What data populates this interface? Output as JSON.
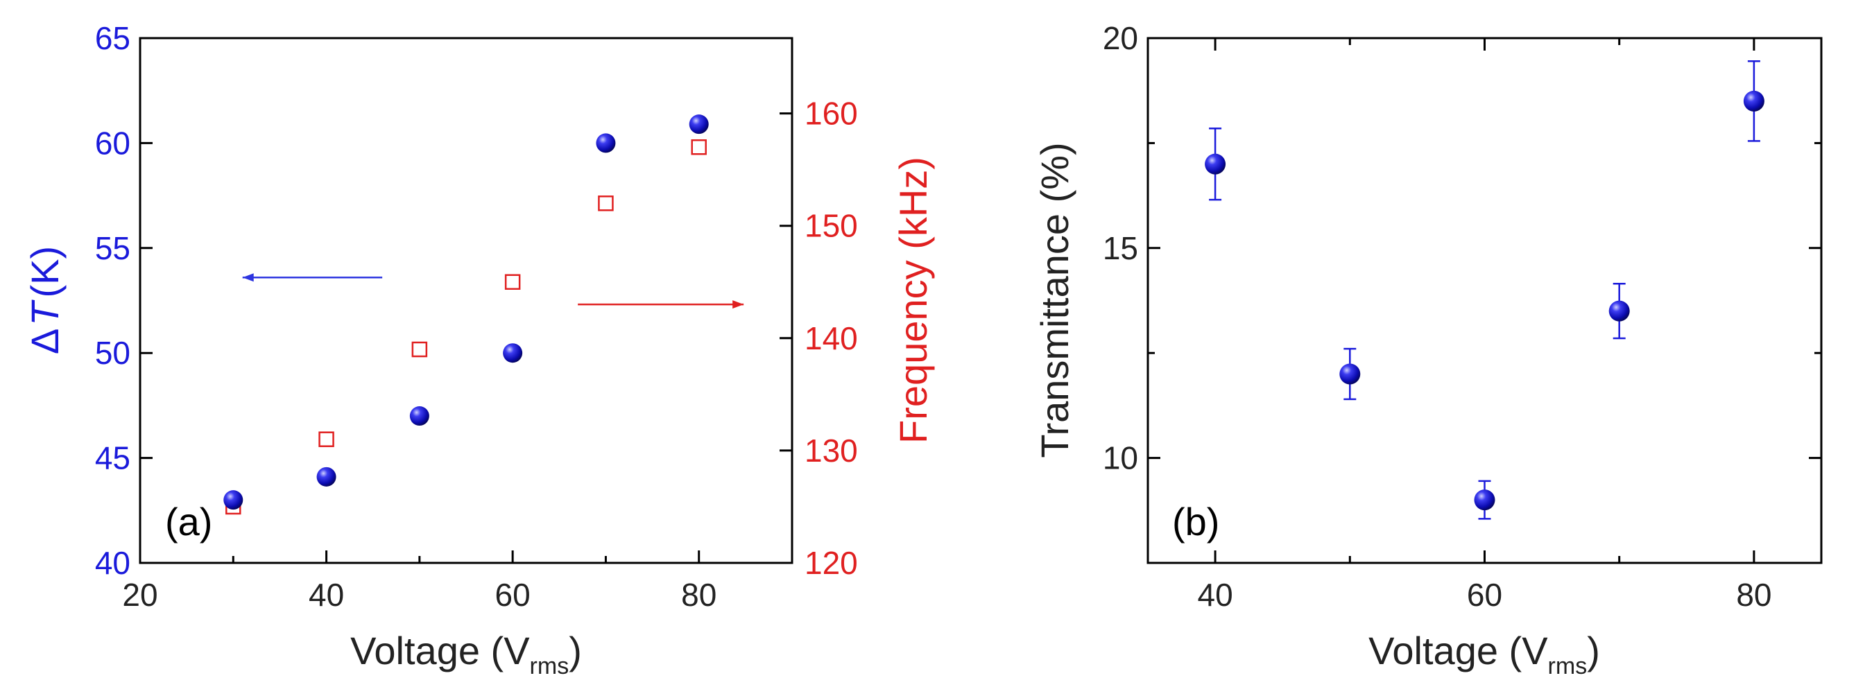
{
  "chart_data": [
    {
      "type": "scatter",
      "panel_label": "(a)",
      "xlabel": "Voltage (V",
      "xlabel_sub": "rms",
      "xlabel_close": ")",
      "ylabel_left_prefix": "Δ",
      "ylabel_left_var": "T",
      "ylabel_left_unit": "(K)",
      "ylabel_right": "Frequency (kHz)",
      "xlim": [
        20,
        90
      ],
      "ylim_left": [
        40,
        65
      ],
      "ylim_right": [
        120,
        166.7
      ],
      "xticks": [
        20,
        40,
        60,
        80
      ],
      "yticks_left": [
        40,
        45,
        50,
        55,
        60,
        65
      ],
      "yticks_right": [
        120,
        130,
        140,
        150,
        160
      ],
      "series": [
        {
          "name": "ΔT",
          "axis": "left",
          "marker": "filled-sphere",
          "color": "#1a1adb",
          "x": [
            30,
            40,
            50,
            60,
            70,
            80
          ],
          "y": [
            43,
            44.1,
            47,
            50,
            60,
            60.9
          ]
        },
        {
          "name": "Frequency",
          "axis": "right",
          "marker": "open-square",
          "color": "#e02020",
          "x": [
            30,
            40,
            50,
            60,
            70,
            80
          ],
          "y": [
            125,
            131,
            139,
            145,
            152,
            157
          ]
        }
      ],
      "annotations": [
        {
          "type": "arrow",
          "direction": "left",
          "color": "#2d35e0",
          "from_x": 46,
          "to_x": 31,
          "y_left": 53.6
        },
        {
          "type": "arrow",
          "direction": "right",
          "color": "#e02020",
          "from_x": 67,
          "to_x": 84.8,
          "y_right": 143
        }
      ],
      "colors": {
        "left_axis": "#1a1adb",
        "right_axis": "#e02020"
      }
    },
    {
      "type": "scatter",
      "panel_label": "(b)",
      "xlabel": "Voltage (V",
      "xlabel_sub": "rms",
      "xlabel_close": ")",
      "ylabel": "Transmittance (%)",
      "xlim": [
        35,
        85
      ],
      "ylim": [
        7.5,
        20
      ],
      "xticks": [
        40,
        60,
        80
      ],
      "yticks": [
        10,
        15,
        20
      ],
      "series": [
        {
          "name": "Transmittance",
          "marker": "filled-sphere",
          "color": "#1a1adb",
          "x": [
            40,
            50,
            60,
            70,
            80
          ],
          "y": [
            17,
            12,
            9,
            13.5,
            18.5
          ],
          "yerr": [
            0.85,
            0.6,
            0.45,
            0.65,
            0.95
          ]
        }
      ]
    }
  ]
}
